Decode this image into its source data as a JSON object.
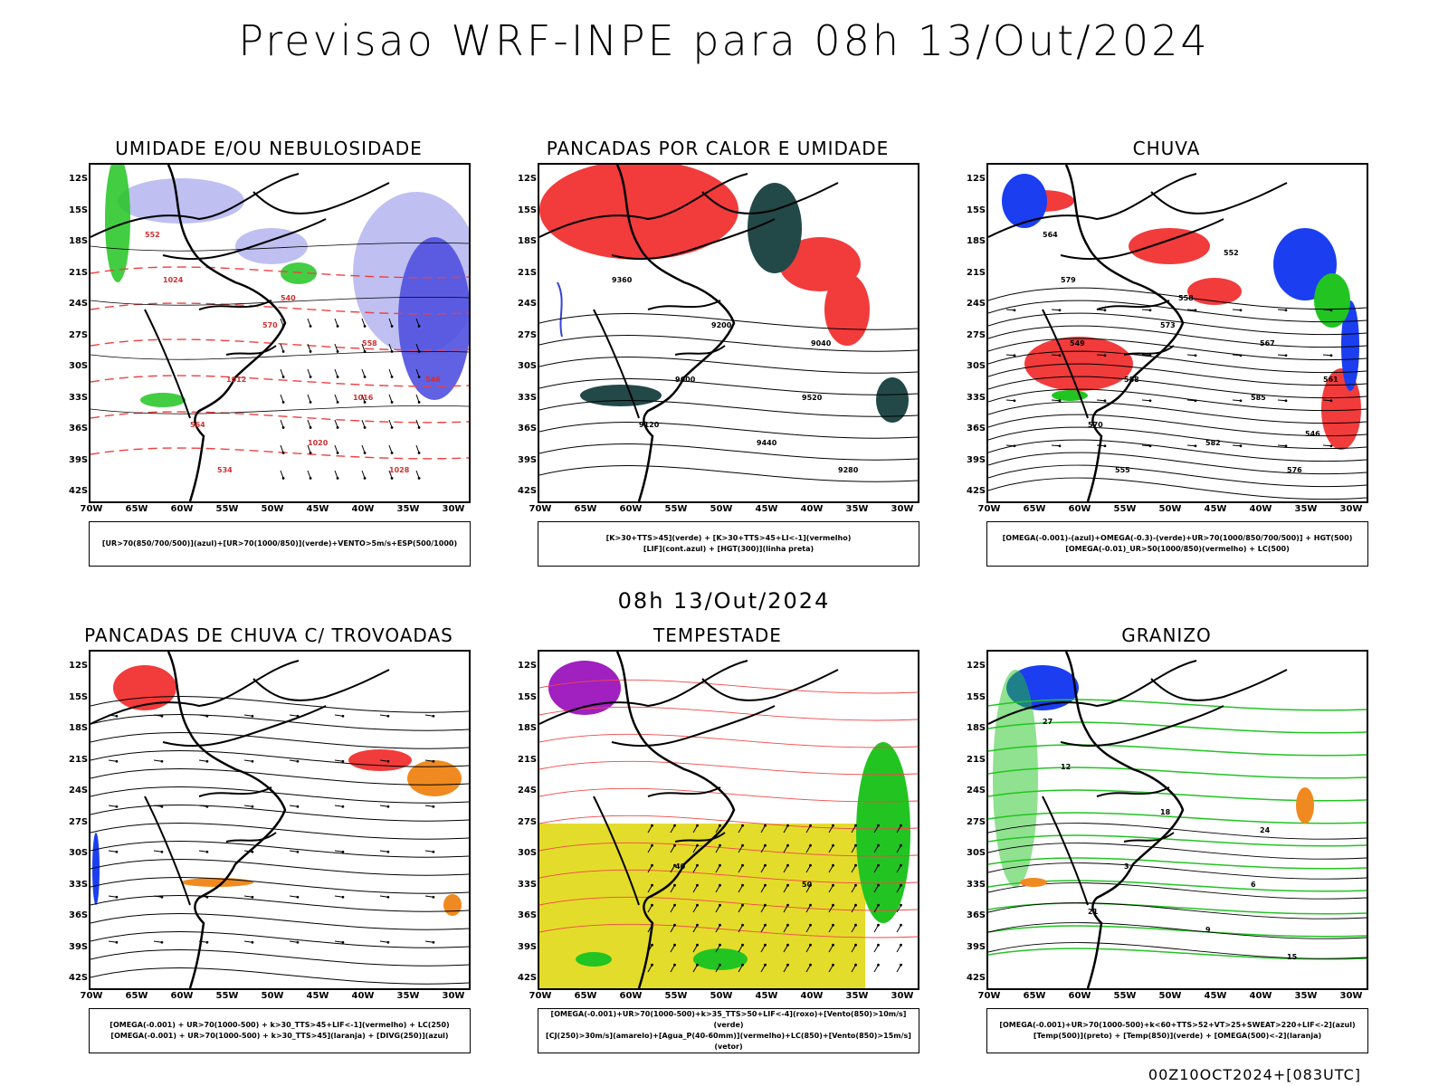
{
  "page_title": "Previsao WRF-INPE  para 08h 13/Out/2024",
  "middle_title": "08h 13/Out/2024",
  "footer_stamp": "00Z10OCT2024+[083UTC]",
  "axes": {
    "lat_labels": [
      "12S",
      "15S",
      "18S",
      "21S",
      "24S",
      "27S",
      "30S",
      "33S",
      "36S",
      "39S",
      "42S"
    ],
    "lon_labels": [
      "70W",
      "65W",
      "60W",
      "55W",
      "50W",
      "45W",
      "40W",
      "35W",
      "30W"
    ]
  },
  "panels": [
    {
      "id": "umidade",
      "title": "UMIDADE E/OU NEBULOSIDADE",
      "legend": [
        "[UR>70(850/700/500)](azul)+[UR>70(1000/850)](verde)+VENTO>5m/s+ESP(500/1000)"
      ],
      "labels": [
        "1012",
        "1016",
        "1020",
        "1024",
        "1028",
        "570",
        "564",
        "558",
        "552",
        "546",
        "540",
        "534"
      ],
      "fill_colors": [
        "#b8b8f0",
        "#5050e0",
        "#22c422",
        "#e04040"
      ]
    },
    {
      "id": "pancadas-calor",
      "title": "PANCADAS POR CALOR E UMIDADE",
      "legend": [
        "[K>30+TTS>45](verde) + [K>30+TTS>45+LI<-1](vermelho)",
        "[LIF](cont.azul) + [HGT(300)](linha preta)"
      ],
      "labels": [
        "9600",
        "9520",
        "9440",
        "9360",
        "9280",
        "9200",
        "9120",
        "9040"
      ],
      "fill_colors": [
        "#f23b3b",
        "#234848",
        "#3344dd"
      ]
    },
    {
      "id": "chuva",
      "title": "CHUVA",
      "legend": [
        "[OMEGA(-0.001)-(azul)+OMEGA(-0.3)-(verde)+UR>70(1000/850/700/500)] + HGT(500)",
        "[OMEGA(-0.01)_UR>50(1000/850)(vermelho) + LC(500)"
      ],
      "labels": [
        "588",
        "585",
        "582",
        "579",
        "576",
        "573",
        "570",
        "567",
        "564",
        "561",
        "558",
        "555",
        "552",
        "549",
        "546"
      ],
      "fill_colors": [
        "#f23b3b",
        "#1a3ef0",
        "#22c422"
      ]
    },
    {
      "id": "trovoadas",
      "title": "PANCADAS DE CHUVA C/ TROVOADAS",
      "legend": [
        "[OMEGA(-0.001) + UR>70(1000-500) + k>30_TTS>45+LIF<-1](vermelho) + LC(250)",
        "[OMEGA(-0.001) + UR>70(1000-500) + k>30_TTS>45](laranja) + [DIVG(250)](azul)"
      ],
      "labels": [],
      "fill_colors": [
        "#f23b3b",
        "#f08a20",
        "#1a3ef0"
      ]
    },
    {
      "id": "tempestade",
      "title": "TEMPESTADE",
      "legend": [
        "[OMEGA(-0.001)+UR>70(1000-500)+k>35_TTS>50+LIF<-4](roxo)+[Vento(850)>10m/s](verde)",
        "[CJ(250)>30m/s](amarelo)+[Agua_P(40-60mm)](vermelho)+LC(850)+[Vento(850)>15m/s](vetor)"
      ],
      "labels": [
        "40",
        "50"
      ],
      "fill_colors": [
        "#e4dc2a",
        "#22c422",
        "#a020c0",
        "#f04848"
      ]
    },
    {
      "id": "granizo",
      "title": "GRANIZO",
      "legend": [
        "[OMEGA(-0.001)+UR>70(1000-500)+k<60+TTS>52+VT>25+SWEAT>220+LIF<-2](azul)",
        "[Temp(500)](preto) + [Temp(850)](verde) + [OMEGA(500)<-2](laranja)"
      ],
      "labels": [
        "3",
        "6",
        "9",
        "12",
        "15",
        "18",
        "21",
        "24",
        "27"
      ],
      "fill_colors": [
        "#1a3ef0",
        "#22c422",
        "#f08a20"
      ]
    }
  ]
}
